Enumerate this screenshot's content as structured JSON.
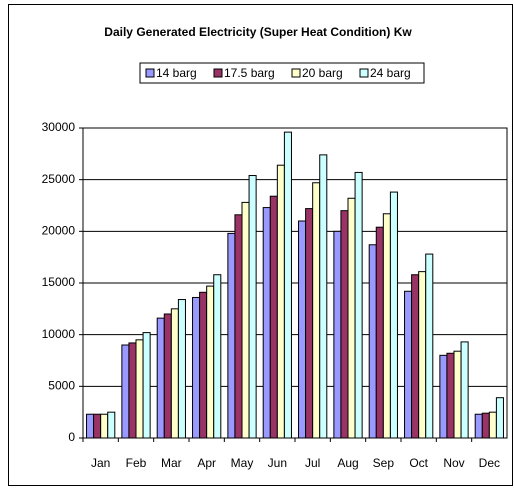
{
  "chart_data": {
    "type": "bar",
    "title": "Daily Generated Electricity (Super Heat Condition) Kw",
    "categories": [
      "Jan",
      "Feb",
      "Mar",
      "Apr",
      "May",
      "Jun",
      "Jul",
      "Aug",
      "Sep",
      "Oct",
      "Nov",
      "Dec"
    ],
    "series": [
      {
        "name": "14 barg",
        "color": "#9999ff",
        "values": [
          2300,
          9000,
          11600,
          13600,
          19800,
          22300,
          21000,
          20000,
          18700,
          14200,
          8000,
          2300
        ]
      },
      {
        "name": "17.5 barg",
        "color": "#993366",
        "values": [
          2300,
          9200,
          12000,
          14100,
          21600,
          23400,
          22200,
          22000,
          20400,
          15800,
          8200,
          2400
        ]
      },
      {
        "name": "20 barg",
        "color": "#ffffcc",
        "values": [
          2300,
          9500,
          12500,
          14700,
          22800,
          26400,
          24700,
          23200,
          21700,
          16100,
          8400,
          2500
        ]
      },
      {
        "name": "24 barg",
        "color": "#ccffff",
        "values": [
          2500,
          10200,
          13400,
          15800,
          25400,
          29600,
          27400,
          25700,
          23800,
          17800,
          9300,
          3900
        ]
      }
    ],
    "ylim": [
      0,
      30000
    ],
    "yticks": [
      0,
      5000,
      10000,
      15000,
      20000,
      25000,
      30000
    ],
    "grid": true,
    "legend": "top"
  }
}
